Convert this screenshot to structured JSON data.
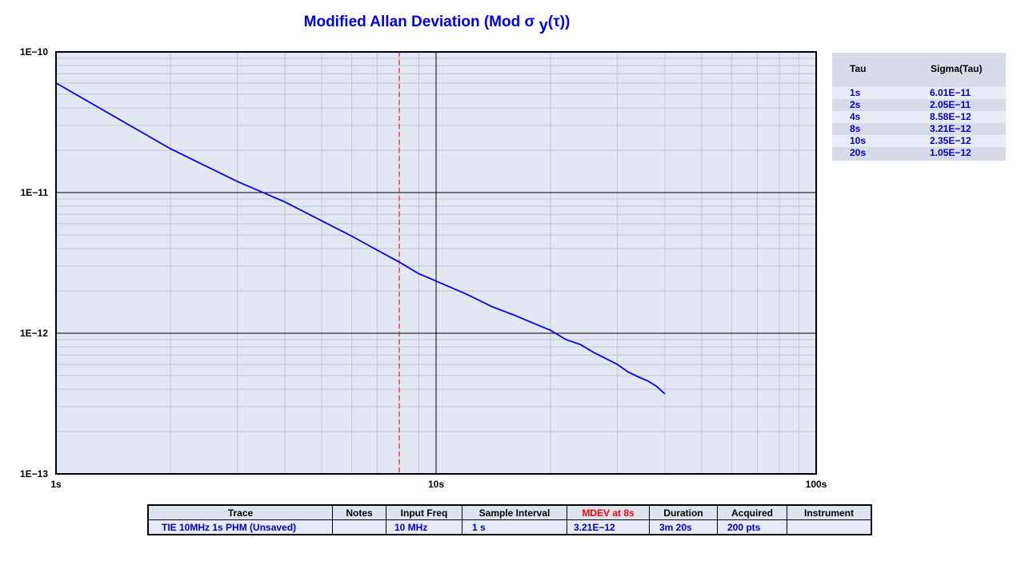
{
  "title": {
    "main": "Modified Allan Deviation (Mod σ ",
    "sub": "y",
    "tail": "(τ))"
  },
  "chart_data": {
    "type": "line",
    "xscale": "log",
    "yscale": "log",
    "xlim": [
      1,
      100
    ],
    "ylim": [
      1e-13,
      1e-10
    ],
    "xticks": [
      "1s",
      "10s",
      "100s"
    ],
    "yticks": [
      "1E−10",
      "1E−11",
      "1E−12",
      "1E−13"
    ],
    "grid": true,
    "marker_x": 8,
    "series": [
      {
        "color": "#0000ee",
        "x": [
          1,
          2,
          3,
          4,
          5,
          6,
          7,
          8,
          9,
          10,
          12,
          14,
          16,
          18,
          20,
          22,
          24,
          26,
          28,
          30,
          32,
          34,
          36,
          38,
          40
        ],
        "y": [
          6.01e-11,
          2.05e-11,
          1.2e-11,
          8.58e-12,
          6.3e-12,
          4.9e-12,
          3.9e-12,
          3.21e-12,
          2.65e-12,
          2.35e-12,
          1.9e-12,
          1.55e-12,
          1.35e-12,
          1.18e-12,
          1.05e-12,
          9e-13,
          8.3e-13,
          7.3e-13,
          6.6e-13,
          6e-13,
          5.3e-13,
          4.9e-13,
          4.6e-13,
          4.2e-13,
          3.7e-13
        ]
      }
    ]
  },
  "sigma_table": {
    "headers": {
      "tau": "Tau",
      "sigma": "Sigma(Tau)"
    },
    "rows": [
      {
        "tau": "1s",
        "sigma": "6.01E−11"
      },
      {
        "tau": "2s",
        "sigma": "2.05E−11"
      },
      {
        "tau": "4s",
        "sigma": "8.58E−12"
      },
      {
        "tau": "8s",
        "sigma": "3.21E−12"
      },
      {
        "tau": "10s",
        "sigma": "2.35E−12"
      },
      {
        "tau": "20s",
        "sigma": "1.05E−12"
      }
    ]
  },
  "info_table": {
    "headers": {
      "trace": "Trace",
      "notes": "Notes",
      "input_freq": "Input Freq",
      "sample_interval": "Sample Interval",
      "mdev": "MDEV at 8s",
      "duration": "Duration",
      "acquired": "Acquired",
      "instrument": "Instrument"
    },
    "values": {
      "trace": "TIE 10MHz 1s PHM  (Unsaved)",
      "notes": "",
      "input_freq": "10 MHz",
      "sample_interval": "1 s",
      "mdev": "3.21E−12",
      "duration": "3m 20s",
      "acquired": "200 pts",
      "instrument": ""
    }
  },
  "colors": {
    "plot_bg": "#e3e7f4",
    "line": "#0000ee",
    "marker": "#dd0000",
    "title": "#0000ee",
    "mdev_header": "#ff0000"
  }
}
